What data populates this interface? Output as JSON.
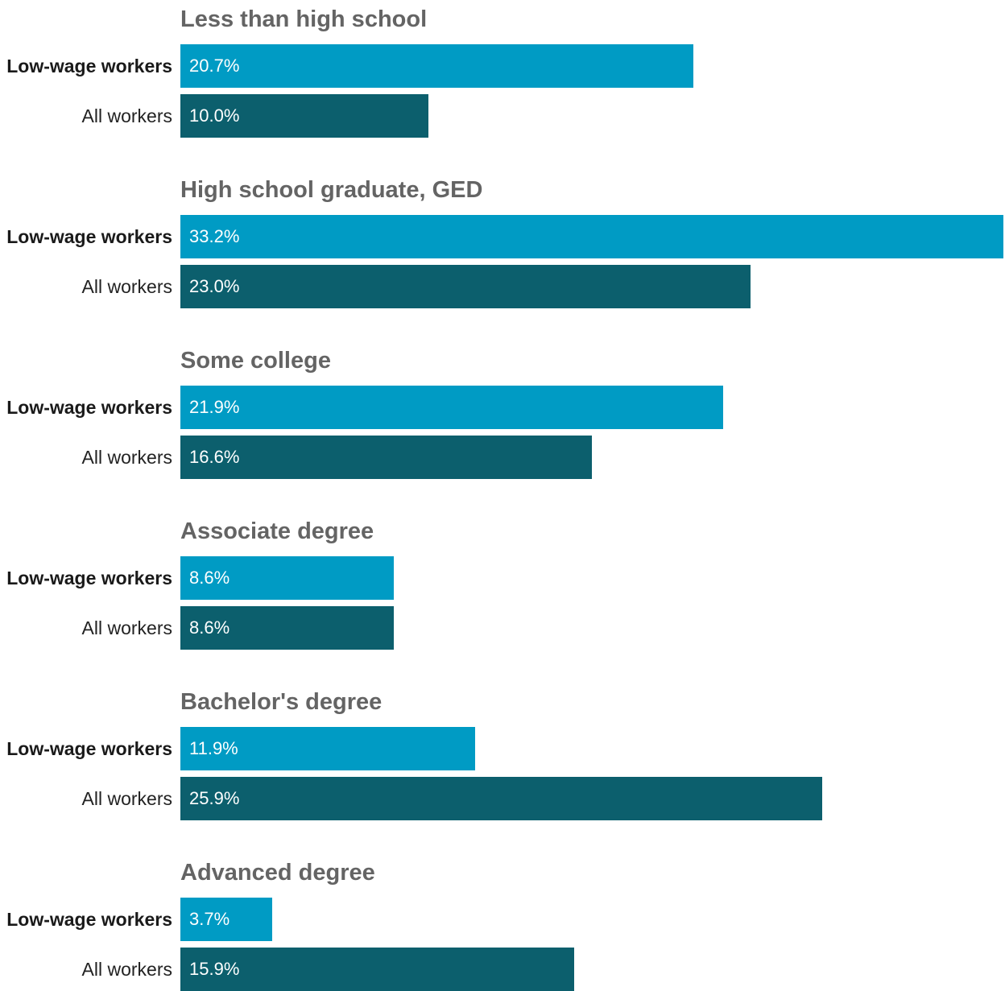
{
  "chart_data": {
    "type": "bar",
    "orientation": "horizontal",
    "categories": [
      "Less than high school",
      "High school graduate, GED",
      "Some college",
      "Associate degree",
      "Bachelor's degree",
      "Advanced degree"
    ],
    "series": [
      {
        "name": "Low-wage workers",
        "color": "#009bc4",
        "bold": true,
        "values": [
          20.7,
          33.2,
          21.9,
          8.6,
          11.9,
          3.7
        ],
        "labels": [
          "20.7%",
          "33.2%",
          "21.9%",
          "8.6%",
          "11.9%",
          "3.7%"
        ]
      },
      {
        "name": "All workers",
        "color": "#0c5f6d",
        "bold": false,
        "values": [
          10.0,
          23.0,
          16.6,
          8.6,
          25.9,
          15.9
        ],
        "labels": [
          "10.0%",
          "23.0%",
          "16.6%",
          "8.6%",
          "25.9%",
          "15.9%"
        ]
      }
    ],
    "xlim": [
      0,
      33.2
    ],
    "grid": false,
    "legend": "none"
  }
}
